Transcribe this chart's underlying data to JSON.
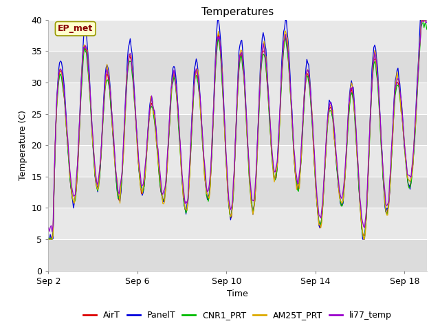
{
  "title": "Temperatures",
  "xlabel": "Time",
  "ylabel": "Temperature (C)",
  "annotation": "EP_met",
  "ylim": [
    0,
    40
  ],
  "yticks": [
    0,
    5,
    10,
    15,
    20,
    25,
    30,
    35,
    40
  ],
  "x_tick_labels": [
    "Sep 2",
    "Sep 6",
    "Sep 10",
    "Sep 14",
    "Sep 18"
  ],
  "x_tick_positions": [
    0,
    4,
    8,
    12,
    16
  ],
  "series_colors": {
    "AirT": "#dd0000",
    "PanelT": "#0000dd",
    "CNR1_PRT": "#00bb00",
    "AM25T_PRT": "#ddaa00",
    "li77_temp": "#9900cc"
  },
  "series_names": [
    "AirT",
    "PanelT",
    "CNR1_PRT",
    "AM25T_PRT",
    "li77_temp"
  ],
  "band_colors": [
    "#dcdcdc",
    "#e8e8e8"
  ],
  "fig_background": "#ffffff",
  "title_fontsize": 11,
  "axis_fontsize": 9,
  "legend_fontsize": 9,
  "n_days": 17,
  "hours_per_day": 24,
  "annotation_facecolor": "#ffffcc",
  "annotation_edgecolor": "#999900",
  "annotation_textcolor": "#880000"
}
